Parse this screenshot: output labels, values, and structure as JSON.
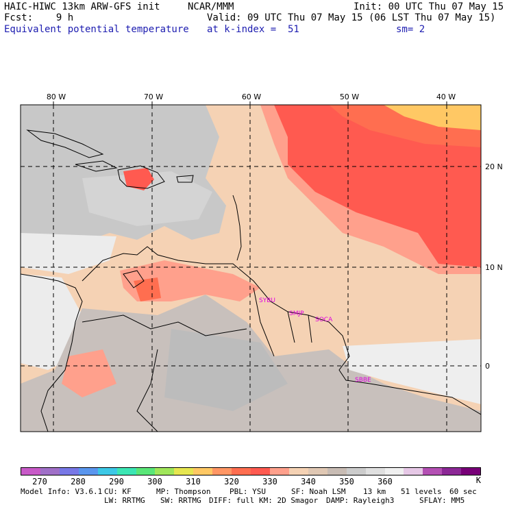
{
  "header": {
    "model_title": "HAIC-HIWC 13km ARW-GFS init",
    "org": "NCAR/MMM",
    "init": "Init: 00 UTC Thu 07 May 15",
    "fcst": "Fcst:    9 h",
    "valid": "Valid: 09 UTC Thu 07 May 15 (06 LST Thu 07 May 15)",
    "field": "Equivalent potential temperature",
    "level": "at k-index =  51",
    "smooth": "sm= 2"
  },
  "map": {
    "lon_labels": [
      "80 W",
      "70 W",
      "60 W",
      "50 W",
      "40 W"
    ],
    "lat_labels": [
      "20 N",
      "10 N",
      "0"
    ],
    "stations": [
      "SYBU",
      "SMJP",
      "SOCA",
      "SBBE"
    ]
  },
  "colorbar": {
    "labels": [
      "270",
      "280",
      "290",
      "300",
      "310",
      "320",
      "330",
      "340",
      "350",
      "360",
      "K"
    ],
    "colors": [
      "#c85ac8",
      "#a070c8",
      "#7878e6",
      "#5a96ee",
      "#3cc8e6",
      "#3ce6b4",
      "#5ae678",
      "#a0e65a",
      "#e6e650",
      "#ffc864",
      "#ff9664",
      "#ff6e50",
      "#ff5a50",
      "#ffa08c",
      "#f5d2b4",
      "#e0c8b4",
      "#c8bcb4",
      "#cccccc",
      "#e0e0e0",
      "#f0f0f0",
      "#e6c8e6",
      "#b450b4",
      "#8c2896",
      "#780078"
    ]
  },
  "footer": {
    "line1": [
      "Model Info: V3.6.1",
      "CU: KF",
      "MP: Thompson",
      "PBL: YSU",
      "SF: Noah LSM",
      "13 km",
      "51 levels",
      "60 sec"
    ],
    "line2": [
      "LW: RRTMG",
      "SW: RRTMG",
      "DIFF: full",
      "KM: 2D Smagor",
      "DAMP: Rayleigh3",
      "SFLAY: MM5"
    ]
  }
}
